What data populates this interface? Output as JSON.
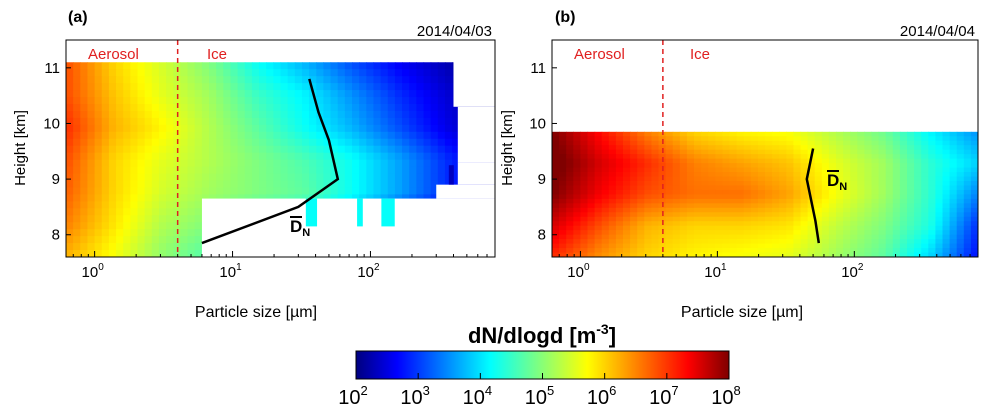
{
  "chart_data": [
    {
      "type": "heatmap",
      "panel": "(a)",
      "date": "2014/04/03",
      "xlabel": "Particle size [µm]",
      "ylabel": "Height [km]",
      "xscale": "log",
      "xlim": [
        0.62,
        800
      ],
      "ylim": [
        7.6,
        11.5
      ],
      "xticks": [
        {
          "base": "10",
          "exp": "0"
        },
        {
          "base": "10",
          "exp": "1"
        },
        {
          "base": "10",
          "exp": "2"
        }
      ],
      "yticks": [
        8,
        9,
        10,
        11
      ],
      "regions": {
        "left": "Aerosol",
        "right": "Ice",
        "boundary_um": 4
      },
      "data_top_km": 11.1,
      "data_bottom_km": 7.6,
      "gap": {
        "x_min_um": 6,
        "x_max_um": 200,
        "y_min_km": 7.6,
        "y_max_km": 8.65
      },
      "mean_diameter_label": "D",
      "mean_diameter_subscript": "N",
      "mean_diameter": [
        {
          "x": 6,
          "y": 7.85
        },
        {
          "x": 30,
          "y": 8.5
        },
        {
          "x": 58,
          "y": 9.0
        },
        {
          "x": 50,
          "y": 9.7
        },
        {
          "x": 42,
          "y": 10.2
        },
        {
          "x": 36,
          "y": 10.8
        }
      ],
      "grid": [
        [
          6.8,
          6.0,
          5.5,
          5.0,
          4.3,
          3.8,
          3.2,
          2.7,
          2.3,
          2.0
        ],
        [
          6.8,
          6.1,
          5.6,
          5.2,
          4.6,
          4.2,
          3.6,
          3.0,
          2.5,
          2.2
        ],
        [
          7.0,
          6.2,
          5.8,
          5.3,
          4.8,
          4.3,
          3.8,
          3.2,
          2.6,
          2.2
        ],
        [
          6.8,
          6.0,
          5.6,
          5.3,
          5.0,
          4.7,
          4.3,
          3.7,
          3.0,
          2.5
        ],
        [
          6.7,
          6.0,
          5.5,
          5.2,
          5.0,
          4.8,
          4.3,
          3.7,
          3.0,
          2.3
        ],
        [
          6.5,
          5.9,
          5.3,
          5.0,
          4.6,
          4.3,
          3.8,
          3.0,
          2.5,
          2.0
        ],
        [
          6.2,
          5.7,
          5.1,
          4.7,
          4.2,
          3.7,
          3.3,
          2.7,
          2.2,
          2.0
        ]
      ]
    },
    {
      "type": "heatmap",
      "panel": "(b)",
      "date": "2014/04/04",
      "xlabel": "Particle size [µm]",
      "ylabel": "Height [km]",
      "xscale": "log",
      "xlim": [
        0.62,
        800
      ],
      "ylim": [
        7.6,
        11.5
      ],
      "xticks": [
        {
          "base": "10",
          "exp": "0"
        },
        {
          "base": "10",
          "exp": "1"
        },
        {
          "base": "10",
          "exp": "2"
        }
      ],
      "yticks": [
        8,
        9,
        10,
        11
      ],
      "regions": {
        "left": "Aerosol",
        "right": "Ice",
        "boundary_um": 4
      },
      "data_top_km": 9.85,
      "data_bottom_km": 7.6,
      "mean_diameter_label": "D",
      "mean_diameter_subscript": "N",
      "mean_diameter": [
        {
          "x": 55,
          "y": 7.85
        },
        {
          "x": 52,
          "y": 8.25
        },
        {
          "x": 45,
          "y": 9.0
        },
        {
          "x": 50,
          "y": 9.55
        }
      ],
      "grid": [
        [
          8.0,
          7.2,
          6.5,
          6.0,
          5.8,
          5.7,
          5.3,
          4.9,
          4.2,
          3.6
        ],
        [
          8.2,
          7.5,
          7.0,
          6.5,
          6.3,
          6.1,
          5.6,
          5.2,
          4.5,
          4.0
        ],
        [
          8.0,
          7.3,
          6.8,
          6.6,
          6.6,
          6.3,
          5.7,
          5.2,
          4.5,
          3.5
        ],
        [
          7.5,
          6.8,
          6.2,
          6.0,
          6.0,
          5.9,
          5.4,
          5.0,
          4.4,
          3.0
        ],
        [
          7.0,
          6.4,
          6.0,
          5.8,
          5.7,
          5.6,
          5.2,
          4.8,
          4.0,
          2.8
        ]
      ]
    }
  ],
  "colorbar": {
    "label_main": "dN/dlogd [m",
    "label_exp": "-3",
    "label_close": "]",
    "min_exp": 2,
    "max_exp": 8,
    "ticks": [
      {
        "base": "10",
        "exp": "2"
      },
      {
        "base": "10",
        "exp": "3"
      },
      {
        "base": "10",
        "exp": "4"
      },
      {
        "base": "10",
        "exp": "5"
      },
      {
        "base": "10",
        "exp": "6"
      },
      {
        "base": "10",
        "exp": "7"
      },
      {
        "base": "10",
        "exp": "8"
      }
    ]
  }
}
